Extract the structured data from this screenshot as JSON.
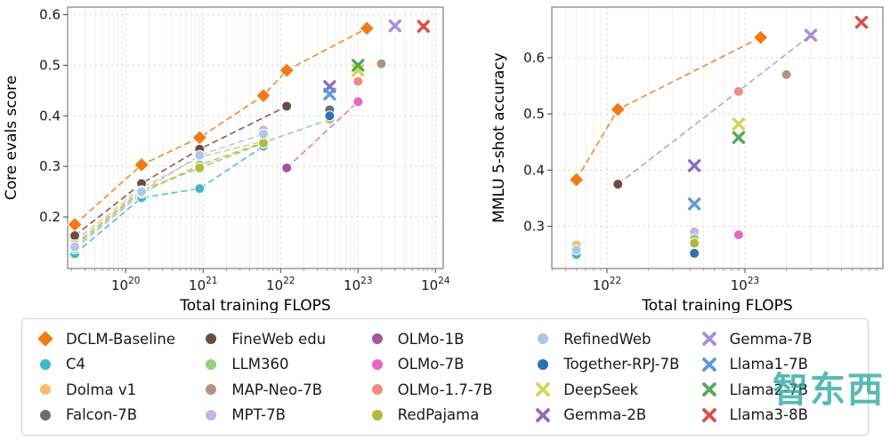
{
  "watermark": {
    "text": "智东西"
  },
  "legend": {
    "entries": [
      {
        "label": "DCLM-Baseline",
        "color": "#f07b16",
        "marker": "diamond"
      },
      {
        "label": "C4",
        "color": "#3fb8c9",
        "marker": "circle"
      },
      {
        "label": "Dolma v1",
        "color": "#f5bc72",
        "marker": "circle"
      },
      {
        "label": "Falcon-7B",
        "color": "#6e6e6e",
        "marker": "circle"
      },
      {
        "label": "FineWeb edu",
        "color": "#6d4c41",
        "marker": "circle"
      },
      {
        "label": "LLM360",
        "color": "#97d077",
        "marker": "circle"
      },
      {
        "label": "MAP-Neo-7B",
        "color": "#b39484",
        "marker": "circle"
      },
      {
        "label": "MPT-7B",
        "color": "#c5b3e6",
        "marker": "circle"
      },
      {
        "label": "OLMo-1B",
        "color": "#a5569b",
        "marker": "circle"
      },
      {
        "label": "OLMo-7B",
        "color": "#e566c3",
        "marker": "circle"
      },
      {
        "label": "OLMo-1.7-7B",
        "color": "#f48a80",
        "marker": "circle"
      },
      {
        "label": "RedPajama",
        "color": "#b5b83a",
        "marker": "circle"
      },
      {
        "label": "RefinedWeb",
        "color": "#aec6e8",
        "marker": "circle"
      },
      {
        "label": "Together-RPJ-7B",
        "color": "#2f6fb3",
        "marker": "circle"
      },
      {
        "label": "DeepSeek",
        "color": "#d3d655",
        "marker": "x"
      },
      {
        "label": "Gemma-2B",
        "color": "#8e6cc0",
        "marker": "x"
      },
      {
        "label": "Gemma-7B",
        "color": "#a88fd8",
        "marker": "x"
      },
      {
        "label": "Llama1-7B",
        "color": "#5b9bd5",
        "marker": "x"
      },
      {
        "label": "Llama2-7B",
        "color": "#57a65a",
        "marker": "x"
      },
      {
        "label": "Llama3-8B",
        "color": "#d85149",
        "marker": "x"
      }
    ]
  },
  "chart_data": [
    {
      "type": "scatter",
      "xlabel": "Total training FLOPS",
      "ylabel": "Core evals score",
      "x_scale": "log10",
      "xlim_log10": [
        19.25,
        24.1
      ],
      "ylim": [
        0.098,
        0.615
      ],
      "xticks_log10": [
        20,
        21,
        22,
        23,
        24
      ],
      "yticks": [
        0.2,
        0.3,
        0.4,
        0.5,
        0.6
      ],
      "grid": true,
      "series": [
        {
          "name": "DCLM-Baseline",
          "points": [
            [
              2.2e+19,
              0.185
            ],
            [
              1.6e+20,
              0.303
            ],
            [
              9e+20,
              0.357
            ],
            [
              6e+21,
              0.44
            ],
            [
              1.2e+22,
              0.49
            ],
            [
              1.3e+23,
              0.573
            ]
          ]
        },
        {
          "name": "C4",
          "points": [
            [
              2.2e+19,
              0.127
            ],
            [
              1.6e+20,
              0.238
            ],
            [
              9e+20,
              0.256
            ],
            [
              6e+21,
              0.34
            ]
          ]
        },
        {
          "name": "Dolma v1",
          "points": [
            [
              2.2e+19,
              0.152
            ],
            [
              1.6e+20,
              0.257
            ],
            [
              9e+20,
              0.318
            ],
            [
              6e+21,
              0.35
            ]
          ]
        },
        {
          "name": "Falcon-7B",
          "points": [
            [
              4.3e+22,
              0.412
            ]
          ]
        },
        {
          "name": "FineWeb edu",
          "points": [
            [
              2.2e+19,
              0.163
            ],
            [
              1.6e+20,
              0.266
            ],
            [
              9e+20,
              0.334
            ],
            [
              1.2e+22,
              0.419
            ]
          ]
        },
        {
          "name": "LLM360",
          "points": [
            [
              2.2e+19,
              0.137
            ],
            [
              1.6e+20,
              0.247
            ],
            [
              9e+20,
              0.303
            ],
            [
              4.3e+22,
              0.393
            ]
          ]
        },
        {
          "name": "MAP-Neo-7B",
          "points": [
            [
              2e+23,
              0.503
            ]
          ]
        },
        {
          "name": "MPT-7B",
          "points": [
            [
              6e+21,
              0.372
            ]
          ]
        },
        {
          "name": "OLMo-1B",
          "points": [
            [
              1.2e+22,
              0.297
            ]
          ]
        },
        {
          "name": "OLMo-7B",
          "points": [
            [
              1e+23,
              0.428
            ]
          ]
        },
        {
          "name": "OLMo-1.7-7B",
          "points": [
            [
              1e+23,
              0.468
            ]
          ]
        },
        {
          "name": "RedPajama",
          "points": [
            [
              2.2e+19,
              0.145
            ],
            [
              1.6e+20,
              0.252
            ],
            [
              9e+20,
              0.297
            ],
            [
              6e+21,
              0.346
            ]
          ]
        },
        {
          "name": "RefinedWeb",
          "points": [
            [
              2.2e+19,
              0.141
            ],
            [
              1.6e+20,
              0.25
            ],
            [
              9e+20,
              0.322
            ],
            [
              6e+21,
              0.364
            ]
          ]
        },
        {
          "name": "Together-RPJ-7B",
          "points": [
            [
              4.3e+22,
              0.4
            ]
          ]
        },
        {
          "name": "DeepSeek",
          "points": [
            [
              1e+23,
              0.49
            ]
          ]
        },
        {
          "name": "Gemma-2B",
          "points": [
            [
              4.3e+22,
              0.458
            ]
          ]
        },
        {
          "name": "Gemma-7B",
          "points": [
            [
              3e+23,
              0.578
            ]
          ]
        },
        {
          "name": "Llama1-7B",
          "points": [
            [
              4.3e+22,
              0.443
            ]
          ]
        },
        {
          "name": "Llama2-7B",
          "points": [
            [
              1e+23,
              0.5
            ]
          ]
        },
        {
          "name": "Llama3-8B",
          "points": [
            [
              7e+23,
              0.577
            ]
          ]
        }
      ],
      "connectors": [
        {
          "color": "#e566c3",
          "points": [
            [
              1.2e+22,
              0.297
            ],
            [
              1e+23,
              0.428
            ]
          ]
        }
      ]
    },
    {
      "type": "scatter",
      "xlabel": "Total training FLOPS",
      "ylabel": "MMLU 5-shot accuracy",
      "x_scale": "log10",
      "xlim_log10": [
        21.6,
        24.0
      ],
      "ylim": [
        0.225,
        0.69
      ],
      "xticks_log10": [
        22,
        23
      ],
      "yticks": [
        0.3,
        0.4,
        0.5,
        0.6
      ],
      "grid": true,
      "series": [
        {
          "name": "DCLM-Baseline",
          "points": [
            [
              6e+21,
              0.383
            ],
            [
              1.2e+22,
              0.508
            ],
            [
              1.3e+23,
              0.636
            ]
          ]
        },
        {
          "name": "C4",
          "points": [
            [
              6e+21,
              0.25
            ]
          ]
        },
        {
          "name": "Dolma v1",
          "points": [
            [
              6e+21,
              0.267
            ]
          ]
        },
        {
          "name": "RefinedWeb",
          "points": [
            [
              6e+21,
              0.258
            ]
          ]
        },
        {
          "name": "FineWeb edu",
          "points": [
            [
              1.2e+22,
              0.375
            ]
          ]
        },
        {
          "name": "MPT-7B",
          "points": [
            [
              4.3e+22,
              0.29
            ]
          ]
        },
        {
          "name": "LLM360",
          "points": [
            [
              4.3e+22,
              0.278
            ]
          ]
        },
        {
          "name": "RedPajama",
          "points": [
            [
              4.3e+22,
              0.27
            ]
          ]
        },
        {
          "name": "Together-RPJ-7B",
          "points": [
            [
              4.3e+22,
              0.252
            ]
          ]
        },
        {
          "name": "Llama1-7B",
          "points": [
            [
              4.3e+22,
              0.34
            ]
          ]
        },
        {
          "name": "Gemma-2B",
          "points": [
            [
              4.3e+22,
              0.408
            ]
          ]
        },
        {
          "name": "OLMo-7B",
          "points": [
            [
              9e+22,
              0.285
            ]
          ]
        },
        {
          "name": "OLMo-1.7-7B",
          "points": [
            [
              9e+22,
              0.54
            ]
          ]
        },
        {
          "name": "DeepSeek",
          "points": [
            [
              9e+22,
              0.482
            ]
          ]
        },
        {
          "name": "Llama2-7B",
          "points": [
            [
              9e+22,
              0.458
            ]
          ]
        },
        {
          "name": "MAP-Neo-7B",
          "points": [
            [
              2e+23,
              0.57
            ]
          ]
        },
        {
          "name": "Gemma-7B",
          "points": [
            [
              3e+23,
              0.64
            ]
          ]
        },
        {
          "name": "Llama3-8B",
          "points": [
            [
              7e+23,
              0.663
            ]
          ]
        }
      ],
      "connectors": [
        {
          "color": "#a99ad4",
          "points": [
            [
              1.2e+22,
              0.375
            ],
            [
              3e+23,
              0.64
            ]
          ]
        }
      ]
    }
  ]
}
